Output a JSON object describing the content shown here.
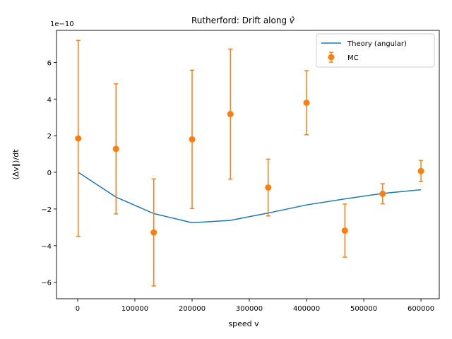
{
  "chart_data": {
    "type": "line",
    "title": "Rutherford: Drift along v̂",
    "title_prefix": "Rutherford: Drift along ",
    "title_symbol": "v̂",
    "xlabel": "speed v",
    "ylabel": "⟨Δv∥⟩/dt",
    "y_multiplier": "1e−10",
    "xlim": [
      -37000,
      632000
    ],
    "ylim": [
      -6.9,
      7.75
    ],
    "xticks": [
      0,
      100000,
      200000,
      300000,
      400000,
      500000,
      600000
    ],
    "xtick_labels": [
      "0",
      "100000",
      "200000",
      "300000",
      "400000",
      "500000",
      "600000"
    ],
    "yticks": [
      -6,
      -4,
      -2,
      0,
      2,
      4,
      6
    ],
    "ytick_labels": [
      "−6",
      "−4",
      "−2",
      "0",
      "2",
      "4",
      "6"
    ],
    "grid": false,
    "legend_position": "top-right",
    "series": [
      {
        "name": "Theory (angular)",
        "kind": "line",
        "color": "#1f77b4",
        "x": [
          1000,
          67000,
          133000,
          200000,
          267000,
          333000,
          400000,
          467000,
          533000,
          600000
        ],
        "y": [
          0.0,
          -1.35,
          -2.25,
          -2.75,
          -2.62,
          -2.22,
          -1.78,
          -1.45,
          -1.15,
          -0.95
        ]
      },
      {
        "name": "MC",
        "kind": "errorbar",
        "color": "#ff7f0e",
        "x": [
          1000,
          67000,
          133000,
          200000,
          267000,
          333000,
          400000,
          467000,
          533000,
          600000
        ],
        "y": [
          1.85,
          1.28,
          -3.28,
          1.8,
          3.18,
          -0.83,
          3.8,
          -3.18,
          -1.17,
          0.07
        ],
        "err": [
          5.35,
          3.55,
          2.92,
          3.78,
          3.55,
          1.55,
          1.75,
          1.45,
          0.55,
          0.58
        ]
      }
    ]
  }
}
